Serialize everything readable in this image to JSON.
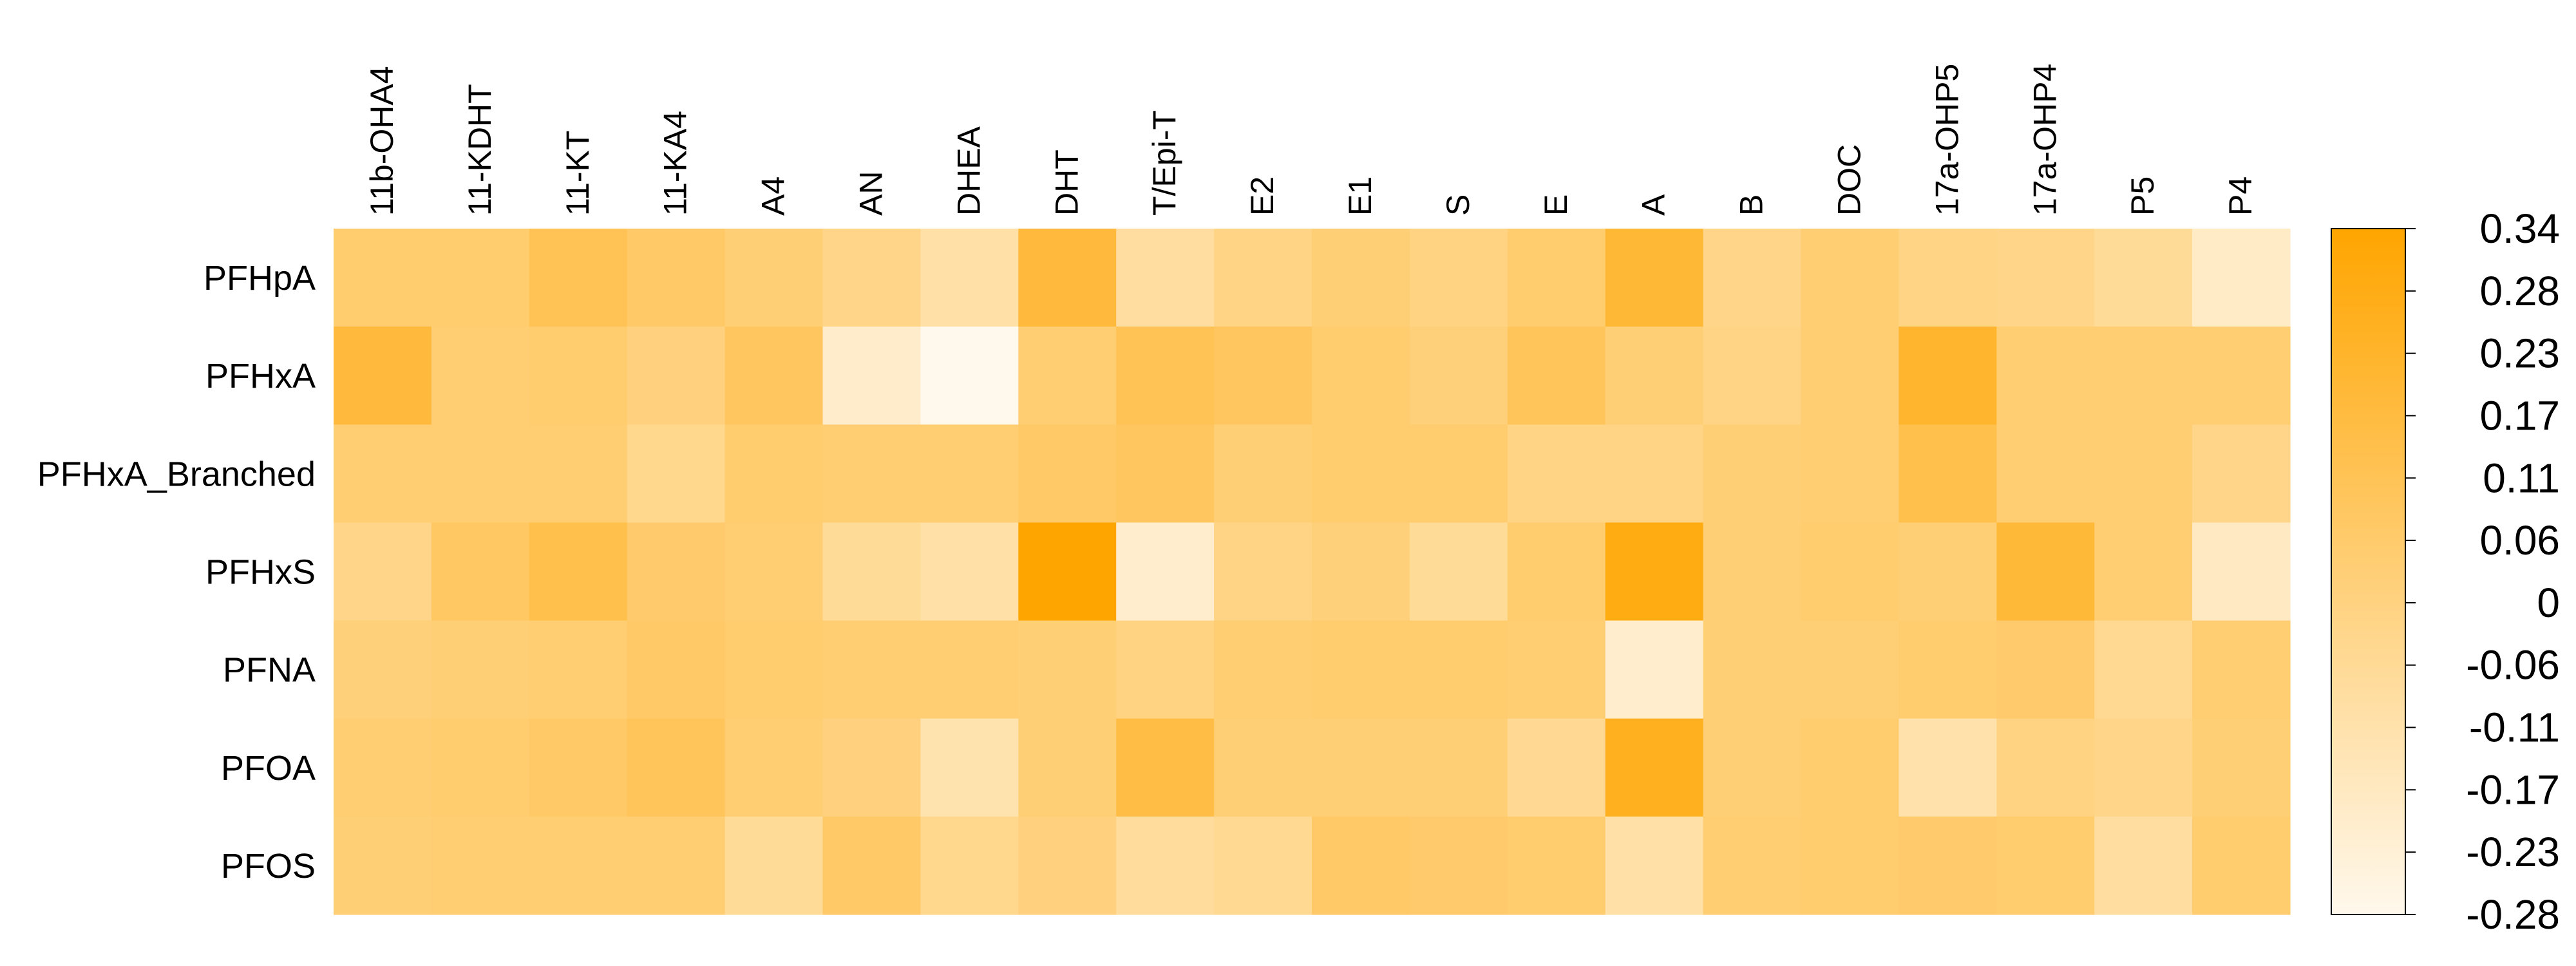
{
  "chart_data": {
    "type": "heatmap",
    "title": "",
    "xlabel": "",
    "ylabel": "",
    "columns": [
      "11b-OHA4",
      "11-KDHT",
      "11-KT",
      "11-KA4",
      "A4",
      "AN",
      "DHEA",
      "DHT",
      "T/Epi-T",
      "E2",
      "E1",
      "S",
      "E",
      "A",
      "B",
      "DOC",
      "17a-OHP5",
      "17a-OHP4",
      "P5",
      "P4"
    ],
    "rows": [
      "PFHpA",
      "PFHxA",
      "PFHxA_Branched",
      "PFHxS",
      "PFNA",
      "PFOA",
      "PFOS"
    ],
    "values": [
      [
        0.05,
        0.05,
        0.12,
        0.07,
        0.03,
        -0.02,
        -0.1,
        0.18,
        -0.08,
        -0.01,
        0.03,
        0.0,
        0.05,
        0.2,
        -0.02,
        0.04,
        -0.01,
        -0.02,
        -0.06,
        -0.18
      ],
      [
        0.18,
        0.04,
        0.05,
        0.01,
        0.09,
        -0.19,
        -0.28,
        0.04,
        0.12,
        0.09,
        0.05,
        0.02,
        0.1,
        0.03,
        -0.01,
        0.04,
        0.22,
        0.04,
        0.04,
        0.04
      ],
      [
        0.04,
        0.04,
        0.04,
        -0.03,
        0.05,
        0.04,
        0.04,
        0.07,
        0.09,
        0.03,
        0.05,
        0.05,
        -0.01,
        -0.01,
        0.03,
        0.04,
        0.14,
        0.04,
        0.04,
        -0.02
      ],
      [
        -0.02,
        0.08,
        0.14,
        0.06,
        0.04,
        -0.06,
        -0.1,
        0.34,
        -0.2,
        -0.01,
        0.02,
        -0.06,
        0.05,
        0.29,
        0.03,
        0.05,
        0.03,
        0.19,
        0.04,
        -0.17
      ],
      [
        0.02,
        0.03,
        0.04,
        0.07,
        0.05,
        0.04,
        0.04,
        0.03,
        0.0,
        0.04,
        0.05,
        0.05,
        0.04,
        -0.2,
        0.03,
        0.03,
        0.05,
        0.06,
        -0.04,
        0.04
      ],
      [
        0.04,
        0.05,
        0.07,
        0.1,
        0.04,
        0.01,
        -0.12,
        0.03,
        0.16,
        0.03,
        0.03,
        0.03,
        -0.05,
        0.26,
        0.03,
        0.05,
        -0.11,
        0.0,
        -0.02,
        0.03
      ],
      [
        0.03,
        0.04,
        0.04,
        0.04,
        -0.06,
        0.07,
        -0.03,
        0.01,
        -0.07,
        -0.04,
        0.07,
        0.06,
        0.05,
        -0.1,
        0.04,
        0.05,
        0.06,
        0.05,
        -0.08,
        0.05
      ]
    ],
    "colorbar": {
      "min": -0.28,
      "max": 0.34,
      "color_low": "#fff8ec",
      "color_high": "#ffa500",
      "tick_labels": [
        "0.34",
        "0.28",
        "0.23",
        "0.17",
        "0.11",
        "0.06",
        "0",
        "-0.06",
        "-0.11",
        "-0.17",
        "-0.23",
        "-0.28"
      ]
    }
  }
}
